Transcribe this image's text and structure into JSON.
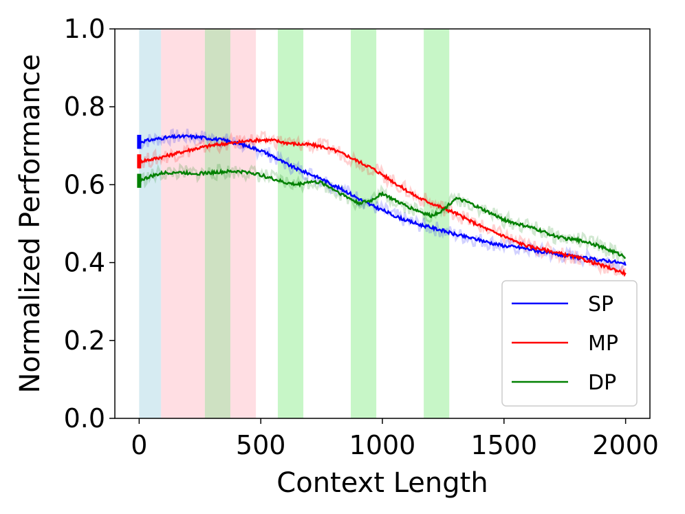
{
  "chart_data": {
    "type": "line",
    "title": "",
    "xlabel": "Context Length",
    "ylabel": "Normalized Performance",
    "xlim": [
      -100,
      2100
    ],
    "ylim": [
      0.0,
      1.0
    ],
    "xticks": [
      0,
      500,
      1000,
      1500,
      2000
    ],
    "xtick_labels": [
      "0",
      "500",
      "1000",
      "1500",
      "2000"
    ],
    "yticks": [
      0.0,
      0.2,
      0.4,
      0.6,
      0.8,
      1.0
    ],
    "ytick_labels": [
      "0.0",
      "0.2",
      "0.4",
      "0.6",
      "0.8",
      "1.0"
    ],
    "grid": false,
    "legend_position": "bottom-right",
    "shaded_regions": [
      {
        "x0": 0,
        "x1": 90,
        "color": "#add8e6",
        "opacity": 0.5
      },
      {
        "x0": 90,
        "x1": 270,
        "color": "#ffb6c1",
        "opacity": 0.45
      },
      {
        "x0": 270,
        "x1": 375,
        "color": "#a6c990",
        "opacity": 0.55
      },
      {
        "x0": 375,
        "x1": 480,
        "color": "#ffb6c1",
        "opacity": 0.45
      },
      {
        "x0": 570,
        "x1": 675,
        "color": "#90ee90",
        "opacity": 0.5
      },
      {
        "x0": 870,
        "x1": 975,
        "color": "#90ee90",
        "opacity": 0.5
      },
      {
        "x0": 1170,
        "x1": 1275,
        "color": "#90ee90",
        "opacity": 0.5
      }
    ],
    "series": [
      {
        "name": "SP",
        "color": "#0000ff",
        "x": [
          0,
          50,
          100,
          150,
          200,
          250,
          300,
          350,
          400,
          450,
          500,
          550,
          600,
          650,
          700,
          750,
          800,
          850,
          900,
          950,
          1000,
          1050,
          1100,
          1150,
          1200,
          1250,
          1300,
          1350,
          1400,
          1450,
          1500,
          1550,
          1600,
          1650,
          1700,
          1750,
          1800,
          1850,
          1900,
          1950,
          2000
        ],
        "y": [
          0.71,
          0.715,
          0.72,
          0.723,
          0.724,
          0.722,
          0.718,
          0.714,
          0.707,
          0.698,
          0.688,
          0.673,
          0.655,
          0.64,
          0.628,
          0.615,
          0.598,
          0.583,
          0.565,
          0.548,
          0.535,
          0.52,
          0.508,
          0.498,
          0.49,
          0.482,
          0.472,
          0.465,
          0.458,
          0.45,
          0.443,
          0.44,
          0.435,
          0.428,
          0.422,
          0.418,
          0.414,
          0.41,
          0.406,
          0.403,
          0.395
        ]
      },
      {
        "name": "MP",
        "color": "#ff0000",
        "x": [
          0,
          50,
          100,
          150,
          200,
          250,
          300,
          350,
          400,
          450,
          500,
          550,
          600,
          650,
          700,
          750,
          800,
          850,
          900,
          950,
          1000,
          1050,
          1100,
          1150,
          1200,
          1250,
          1300,
          1350,
          1400,
          1450,
          1500,
          1550,
          1600,
          1650,
          1700,
          1750,
          1800,
          1850,
          1900,
          1950,
          2000
        ],
        "y": [
          0.66,
          0.665,
          0.672,
          0.68,
          0.688,
          0.695,
          0.701,
          0.705,
          0.708,
          0.713,
          0.715,
          0.714,
          0.708,
          0.704,
          0.703,
          0.698,
          0.689,
          0.676,
          0.66,
          0.645,
          0.626,
          0.605,
          0.585,
          0.566,
          0.553,
          0.54,
          0.527,
          0.51,
          0.495,
          0.48,
          0.468,
          0.453,
          0.442,
          0.435,
          0.428,
          0.42,
          0.413,
          0.403,
          0.393,
          0.383,
          0.372
        ]
      },
      {
        "name": "DP",
        "color": "#008000",
        "x": [
          0,
          50,
          100,
          150,
          200,
          250,
          300,
          350,
          400,
          450,
          500,
          550,
          600,
          650,
          700,
          750,
          800,
          850,
          900,
          950,
          1000,
          1050,
          1100,
          1150,
          1200,
          1250,
          1300,
          1350,
          1400,
          1450,
          1500,
          1550,
          1600,
          1650,
          1700,
          1750,
          1800,
          1850,
          1900,
          1950,
          2000
        ],
        "y": [
          0.61,
          0.622,
          0.63,
          0.632,
          0.63,
          0.629,
          0.631,
          0.633,
          0.634,
          0.632,
          0.625,
          0.615,
          0.605,
          0.6,
          0.608,
          0.605,
          0.588,
          0.57,
          0.553,
          0.558,
          0.578,
          0.56,
          0.545,
          0.532,
          0.52,
          0.535,
          0.565,
          0.555,
          0.54,
          0.525,
          0.51,
          0.5,
          0.492,
          0.482,
          0.47,
          0.462,
          0.458,
          0.452,
          0.44,
          0.428,
          0.415
        ]
      }
    ]
  }
}
